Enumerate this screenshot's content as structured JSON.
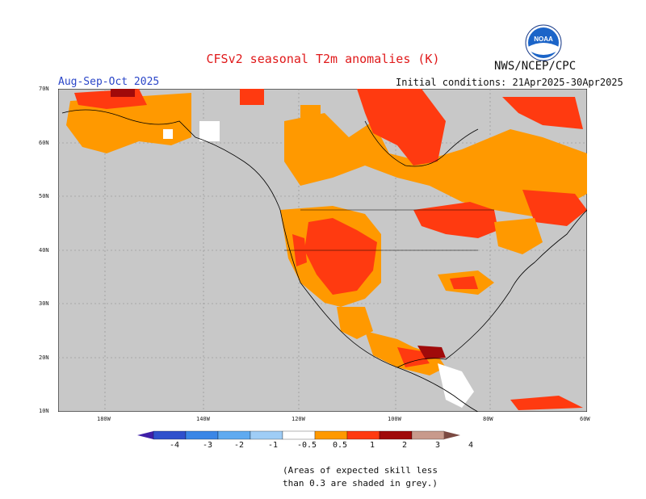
{
  "header": {
    "title": "CFSv2 seasonal T2m anomalies (K)",
    "agency": "NWS/NCEP/CPC",
    "season": "Aug-Sep-Oct 2025",
    "initial_conditions": "Initial conditions: 21Apr2025-30Apr2025",
    "logo_text": "NOAA"
  },
  "map": {
    "lat_labels": [
      "70N",
      "60N",
      "50N",
      "40N",
      "30N",
      "20N",
      "10N"
    ],
    "lon_labels": [
      "180W",
      "140W",
      "120W",
      "100W",
      "80W",
      "60W"
    ],
    "land_color": "#c8c8c8",
    "ocean_color": "#c8c8c8"
  },
  "legend": {
    "ticks": [
      "-4",
      "-3",
      "-2",
      "-1",
      "-0.5",
      "0.5",
      "1",
      "2",
      "3",
      "4"
    ],
    "colors": [
      "#3f1fa8",
      "#2f50cc",
      "#3a86e6",
      "#5faaf0",
      "#9fcdf6",
      "#ffffff",
      "#ff9900",
      "#ff3a10",
      "#a00a0a",
      "#c89a8c",
      "#7b4a42"
    ]
  },
  "footnote": {
    "line1": "(Areas of expected skill less",
    "line2": "than 0.3 are shaded in grey.)"
  }
}
